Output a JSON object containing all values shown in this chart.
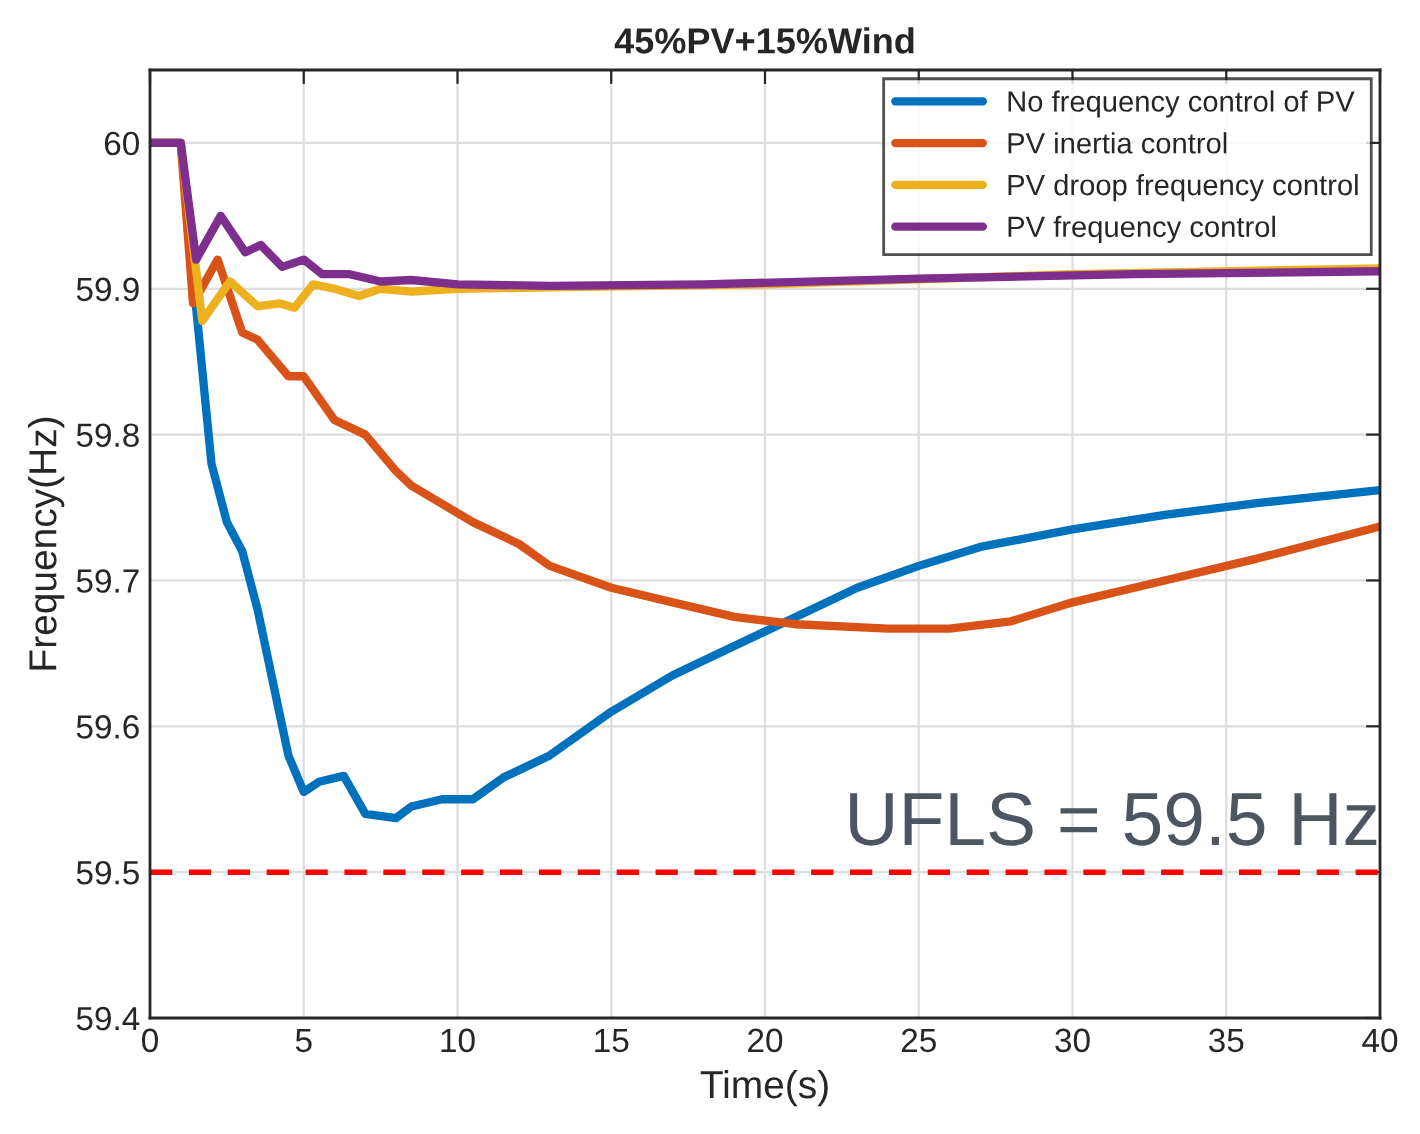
{
  "chart_data": {
    "type": "line",
    "title": "45%PV+15%Wind",
    "xlabel": "Time(s)",
    "ylabel": "Frequency(Hz)",
    "xlim": [
      0,
      40
    ],
    "xticks": [
      0,
      5,
      10,
      15,
      20,
      25,
      30,
      35,
      40
    ],
    "ylim": [
      59.4,
      60.05
    ],
    "yticks": [
      59.4,
      59.5,
      59.6,
      59.7,
      59.8,
      59.9,
      60
    ],
    "grid": true,
    "legend": "top right",
    "line_style": "solid",
    "marker": "none",
    "ref_lines": [
      {
        "axis": "y",
        "value": 59.5,
        "label": "UFLS = 59.5 Hz",
        "color": "#ff0000",
        "line_style": "dashed"
      }
    ],
    "series": [
      {
        "name": "No frequency control of PV",
        "color": "#0072bd",
        "x": [
          0,
          1,
          1.3,
          2,
          2.5,
          3,
          3.5,
          4,
          4.5,
          5,
          5.5,
          6.3,
          7,
          8,
          8.5,
          9.5,
          10.5,
          11.5,
          13,
          15,
          17,
          19,
          21,
          23,
          25,
          27,
          30,
          33,
          36,
          40
        ],
        "values": [
          60,
          60,
          59.93,
          59.78,
          59.74,
          59.72,
          59.68,
          59.63,
          59.58,
          59.555,
          59.562,
          59.566,
          59.54,
          59.537,
          59.545,
          59.55,
          59.55,
          59.565,
          59.58,
          59.61,
          59.635,
          59.655,
          59.675,
          59.695,
          59.71,
          59.723,
          59.735,
          59.745,
          59.753,
          59.762
        ]
      },
      {
        "name": "PV inertia control",
        "color": "#d95319",
        "x": [
          0,
          1,
          1.4,
          2.2,
          3,
          3.5,
          4.5,
          5,
          6,
          7,
          8,
          8.5,
          9.3,
          10.5,
          12,
          13,
          15,
          17,
          19,
          21,
          24,
          26,
          28,
          30,
          33,
          36,
          40
        ],
        "values": [
          60,
          60,
          59.89,
          59.92,
          59.87,
          59.865,
          59.84,
          59.84,
          59.81,
          59.8,
          59.775,
          59.765,
          59.755,
          59.74,
          59.725,
          59.71,
          59.695,
          59.685,
          59.675,
          59.67,
          59.667,
          59.667,
          59.672,
          59.685,
          59.7,
          59.715,
          59.737
        ]
      },
      {
        "name": "PV droop frequency control",
        "color": "#edb120",
        "x": [
          0,
          1,
          1.7,
          2.6,
          3.5,
          4.2,
          4.7,
          5.3,
          6,
          6.8,
          7.5,
          8.5,
          10,
          13,
          20,
          30,
          40
        ],
        "values": [
          60,
          60,
          59.878,
          59.905,
          59.888,
          59.89,
          59.887,
          59.903,
          59.9,
          59.895,
          59.9,
          59.898,
          59.9,
          59.901,
          59.903,
          59.91,
          59.914
        ]
      },
      {
        "name": "PV frequency control",
        "color": "#7e2f8e",
        "x": [
          0,
          1,
          1.5,
          2.3,
          3.1,
          3.6,
          4.3,
          5,
          5.6,
          6.5,
          7.5,
          8.5,
          10,
          13,
          18,
          25,
          32,
          40
        ],
        "values": [
          60,
          60,
          59.92,
          59.95,
          59.925,
          59.93,
          59.915,
          59.92,
          59.91,
          59.91,
          59.905,
          59.906,
          59.903,
          59.902,
          59.903,
          59.907,
          59.91,
          59.912
        ]
      }
    ]
  }
}
